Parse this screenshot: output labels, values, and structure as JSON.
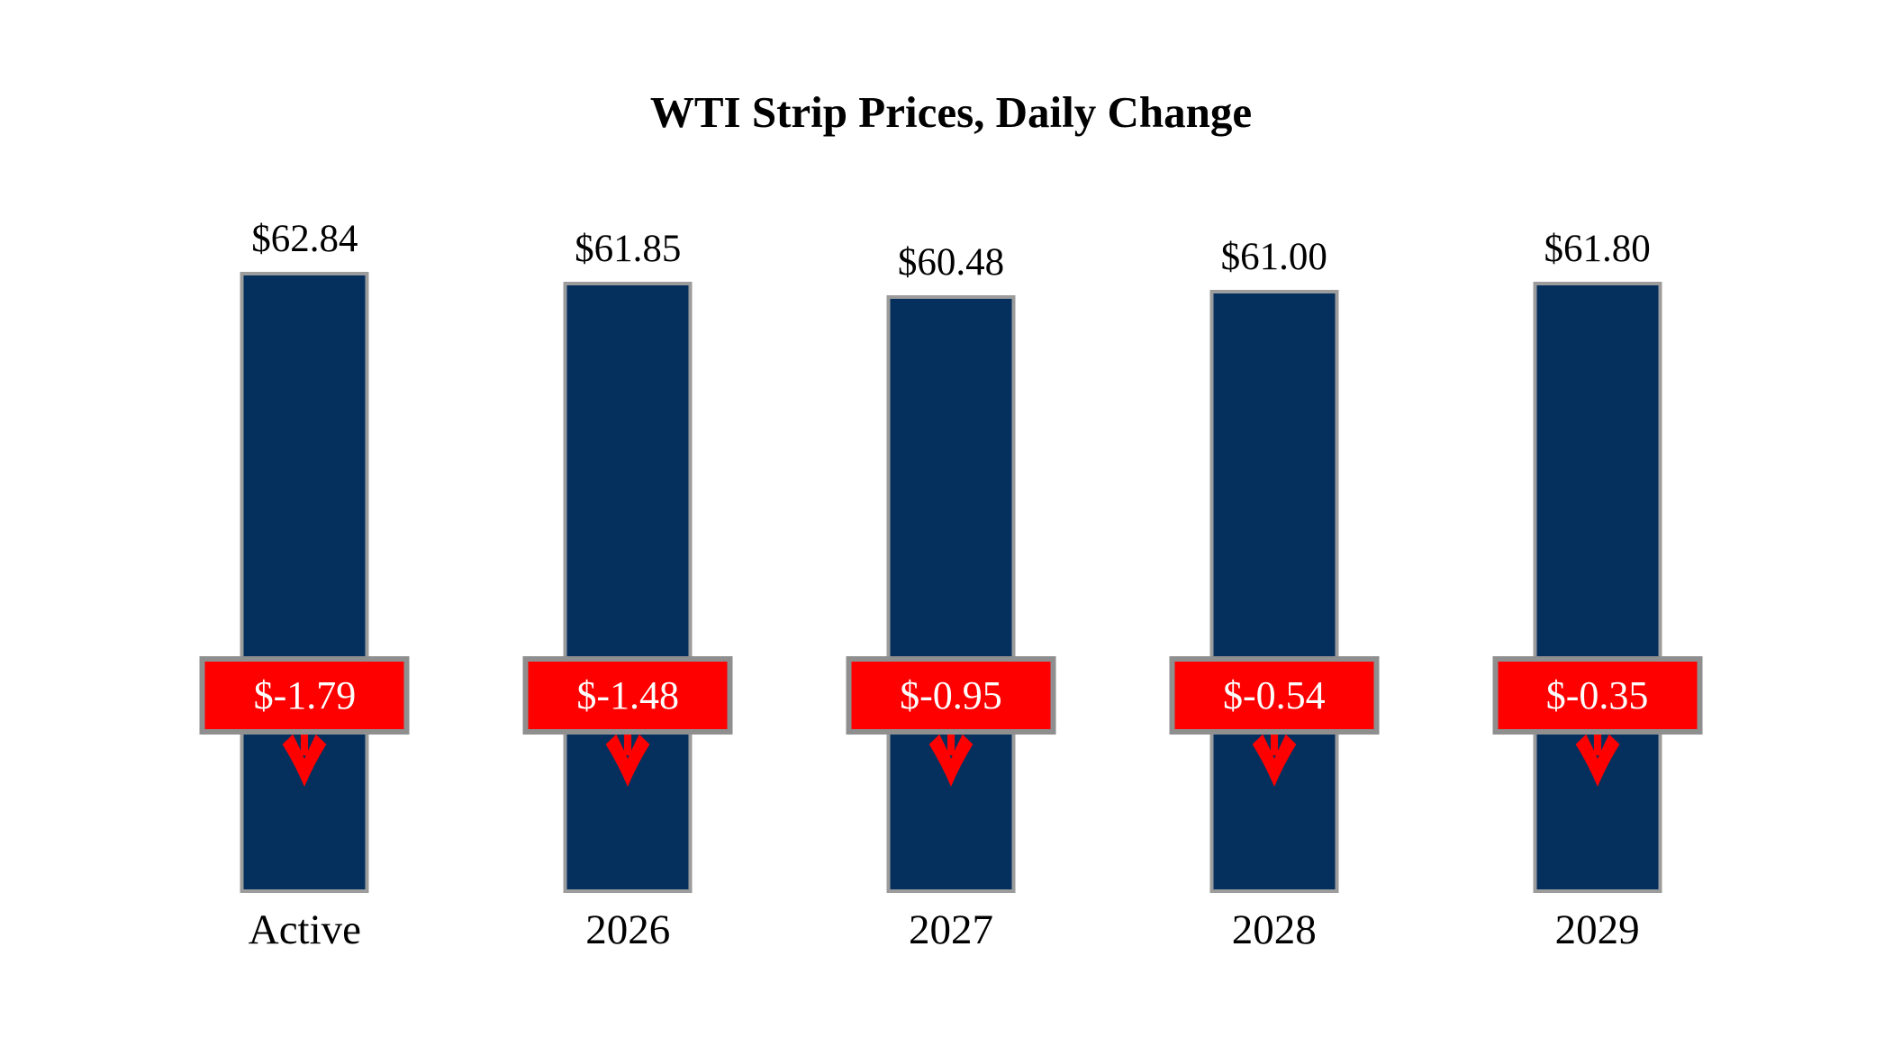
{
  "title": "WTI Strip Prices, Daily Change",
  "colors": {
    "bar": "#05305E",
    "bar_border": "#9C9C9C",
    "badge_background": "#FE0000",
    "badge_border": "#8F8F8F",
    "badge_text": "#FFFFFF",
    "arrow": "#FE0000",
    "text": "#000000",
    "background": "#FFFFFF"
  },
  "chart_data": {
    "type": "bar",
    "title": "WTI Strip Prices, Daily Change",
    "categories": [
      "Active",
      "2026",
      "2027",
      "2028",
      "2029"
    ],
    "series": [
      {
        "name": "Strip Price",
        "values": [
          62.84,
          61.85,
          60.48,
          61.0,
          61.8
        ]
      },
      {
        "name": "Daily Change",
        "values": [
          -1.79,
          -1.48,
          -0.95,
          -0.54,
          -0.35
        ]
      }
    ],
    "bars": [
      {
        "category": "Active",
        "price": 62.84,
        "price_label": "$62.84",
        "change": -1.79,
        "change_label": "$-1.79"
      },
      {
        "category": "2026",
        "price": 61.85,
        "price_label": "$61.85",
        "change": -1.48,
        "change_label": "$-1.48"
      },
      {
        "category": "2027",
        "price": 60.48,
        "price_label": "$60.48",
        "change": -0.95,
        "change_label": "$-0.95"
      },
      {
        "category": "2028",
        "price": 61.0,
        "price_label": "$61.00",
        "change": -0.54,
        "change_label": "$-0.54"
      },
      {
        "category": "2029",
        "price": 61.8,
        "price_label": "$61.80",
        "change": -0.35,
        "change_label": "$-0.35"
      }
    ],
    "ylim": [
      0,
      62.84
    ],
    "xlabel": "",
    "ylabel": "",
    "grid": false,
    "legend": "none",
    "annotations": "Red badge on each bar shows daily change; red arrow points down indicating decline."
  }
}
